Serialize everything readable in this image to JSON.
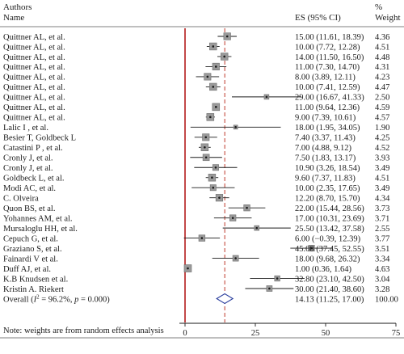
{
  "header": {
    "col1_line1": "Authors",
    "col1_line2": "Name",
    "col2": "ES (95% CI)",
    "col3_line1": "%",
    "col3_line2": "Weight"
  },
  "chart_data": {
    "type": "forest",
    "x_ticks": [
      0,
      25,
      50,
      75
    ],
    "x_range": [
      -2,
      75
    ],
    "null_line": 0,
    "overall_line": 14.13,
    "studies": [
      {
        "label": "Quittner AL, et al.",
        "es": 15.0,
        "lo": 11.61,
        "hi": 18.39,
        "ci_text": "15.00 (11.61, 18.39)",
        "weight": "4.36"
      },
      {
        "label": "Quittner AL, et al.",
        "es": 10.0,
        "lo": 7.72,
        "hi": 12.28,
        "ci_text": "10.00 (7.72, 12.28)",
        "weight": "4.51"
      },
      {
        "label": "Quittner AL, et al.",
        "es": 14.0,
        "lo": 11.5,
        "hi": 16.5,
        "ci_text": "14.00 (11.50, 16.50)",
        "weight": "4.48"
      },
      {
        "label": "Quittner AL, et al.",
        "es": 11.0,
        "lo": 7.3,
        "hi": 14.7,
        "ci_text": "11.00 (7.30, 14.70)",
        "weight": "4.31"
      },
      {
        "label": "Quittner AL, et al.",
        "es": 8.0,
        "lo": 3.89,
        "hi": 12.11,
        "ci_text": "8.00 (3.89, 12.11)",
        "weight": "4.23"
      },
      {
        "label": "Quittner AL, et al.",
        "es": 10.0,
        "lo": 7.41,
        "hi": 12.59,
        "ci_text": "10.00 (7.41, 12.59)",
        "weight": "4.47"
      },
      {
        "label": "Quittner AL, et al.",
        "es": 29.0,
        "lo": 16.67,
        "hi": 41.33,
        "ci_text": "29.00 (16.67, 41.33)",
        "weight": "2.50"
      },
      {
        "label": "Quittner AL, et al.",
        "es": 11.0,
        "lo": 9.64,
        "hi": 12.36,
        "ci_text": "11.00 (9.64, 12.36)",
        "weight": "4.59"
      },
      {
        "label": "Quittner AL, et al.",
        "es": 9.0,
        "lo": 7.39,
        "hi": 10.61,
        "ci_text": "9.00 (7.39, 10.61)",
        "weight": "4.57"
      },
      {
        "label": "Lalic I , et al.",
        "es": 18.0,
        "lo": 1.95,
        "hi": 34.05,
        "ci_text": "18.00 (1.95, 34.05)",
        "weight": "1.90"
      },
      {
        "label": "Besier T, Goldbeck L",
        "es": 7.4,
        "lo": 3.37,
        "hi": 11.43,
        "ci_text": "7.40 (3.37, 11.43)",
        "weight": "4.25"
      },
      {
        "label": "Catastini P , et al.",
        "es": 7.0,
        "lo": 4.88,
        "hi": 9.12,
        "ci_text": "7.00 (4.88, 9.12)",
        "weight": "4.52"
      },
      {
        "label": "Cronly J, et al.",
        "es": 7.5,
        "lo": 1.83,
        "hi": 13.17,
        "ci_text": "7.50 (1.83, 13.17)",
        "weight": "3.93"
      },
      {
        "label": "Cronly J, et al.",
        "es": 10.9,
        "lo": 3.26,
        "hi": 18.54,
        "ci_text": "10.90 (3.26, 18.54)",
        "weight": "3.49"
      },
      {
        "label": "Goldbeck L, et al.",
        "es": 9.6,
        "lo": 7.37,
        "hi": 11.83,
        "ci_text": "9.60 (7.37, 11.83)",
        "weight": "4.51"
      },
      {
        "label": "Modi AC, et al.",
        "es": 10.0,
        "lo": 2.35,
        "hi": 17.65,
        "ci_text": "10.00 (2.35, 17.65)",
        "weight": "3.49"
      },
      {
        "label": "C. Olveira",
        "es": 12.2,
        "lo": 8.7,
        "hi": 15.7,
        "ci_text": "12.20 (8.70, 15.70)",
        "weight": "4.34"
      },
      {
        "label": "Quon BS, et al.",
        "es": 22.0,
        "lo": 15.44,
        "hi": 28.56,
        "ci_text": "22.00 (15.44, 28.56)",
        "weight": "3.73"
      },
      {
        "label": "Yohannes AM, et al.",
        "es": 17.0,
        "lo": 10.31,
        "hi": 23.69,
        "ci_text": "17.00 (10.31, 23.69)",
        "weight": "3.71"
      },
      {
        "label": "Mursaloglu HH, et al.",
        "es": 25.5,
        "lo": 13.42,
        "hi": 37.58,
        "ci_text": "25.50 (13.42, 37.58)",
        "weight": "2.55"
      },
      {
        "label": "Cepuch G, et al.",
        "es": 6.0,
        "lo": -0.39,
        "hi": 12.39,
        "ci_text": "6.00 (−0.39, 12.39)",
        "weight": "3.77"
      },
      {
        "label": "Graziano S, et al.",
        "es": 45.0,
        "lo": 37.45,
        "hi": 52.55,
        "ci_text": "45.00 (37.45, 52.55)",
        "weight": "3.51"
      },
      {
        "label": "Fainardi V et al.",
        "es": 18.0,
        "lo": 9.68,
        "hi": 26.32,
        "ci_text": "18.00 (9.68, 26.32)",
        "weight": "3.34"
      },
      {
        "label": "Duff AJ, et al.",
        "es": 1.0,
        "lo": 0.36,
        "hi": 1.64,
        "ci_text": "1.00 (0.36, 1.64)",
        "weight": "4.63"
      },
      {
        "label": "K.B Knudsen et al.",
        "es": 32.8,
        "lo": 23.1,
        "hi": 42.5,
        "ci_text": "32.80 (23.10, 42.50)",
        "weight": "3.04"
      },
      {
        "label": "Kristin A. Riekert",
        "es": 30.0,
        "lo": 21.4,
        "hi": 38.6,
        "ci_text": "30.00 (21.40, 38.60)",
        "weight": "3.28"
      }
    ],
    "overall": {
      "label_prefix": "Overall (",
      "label_i2": "I",
      "label_i2_sup": "2",
      "label_mid": " = 96.2%, ",
      "label_p": "p",
      "label_end": " = 0.000)",
      "es": 14.13,
      "lo": 11.25,
      "hi": 17.0,
      "ci_text": "14.13 (11.25, 17.00)",
      "weight": "100.00"
    },
    "note": "Note: weights are from random effects analysis",
    "colors": {
      "null_line": "#b31b1b",
      "overall_line": "#c0392b",
      "overall_diamond": "#2b3f9e",
      "marker_fill": "#9a9a9a",
      "marker_stroke": "#6f6f6f",
      "ci_line": "#1a1a1a"
    }
  }
}
